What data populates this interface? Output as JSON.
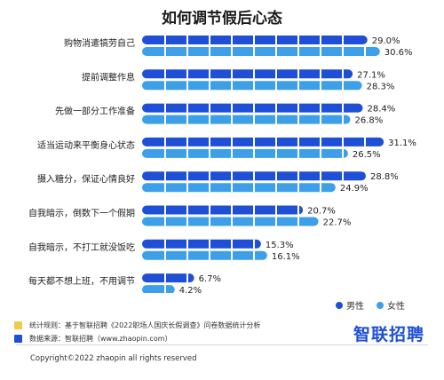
{
  "chart_data": {
    "type": "bar",
    "orientation": "horizontal",
    "title": "如何调节假后心态",
    "categories": [
      "购物消遣犒劳自己",
      "提前调整作息",
      "先做一部分工作准备",
      "适当运动来平衡身心状态",
      "摄入糖分，保证心情良好",
      "自我暗示，倒数下一个假期",
      "自我暗示，不打工就没饭吃",
      "每天都不想上班，不用调节"
    ],
    "series": [
      {
        "name": "男性",
        "color": "#1f4fd6",
        "values": [
          29.0,
          27.1,
          28.4,
          31.1,
          28.8,
          20.7,
          15.3,
          6.7
        ],
        "labels": [
          "29.0%",
          "27.1%",
          "28.4%",
          "31.1%",
          "28.8%",
          "20.7%",
          "15.3%",
          "6.7%"
        ]
      },
      {
        "name": "女性",
        "color": "#3d9fe8",
        "values": [
          30.6,
          28.3,
          26.8,
          26.5,
          24.9,
          22.7,
          16.1,
          4.2
        ],
        "labels": [
          "30.6%",
          "28.3%",
          "26.8%",
          "26.5%",
          "24.9%",
          "22.7%",
          "16.1%",
          "4.2%"
        ]
      }
    ],
    "xlim": [
      0,
      35
    ],
    "legend_position": "bottom-right",
    "grid": false
  },
  "footer": {
    "rule_text": "统计规则：基于智联招聘《2022职场人国庆长假调查》问卷数据统计分析",
    "rule_color": "#f2c94c",
    "source_text": "数据来源：智联招聘（www.zhaopin.com）",
    "source_color": "#1f4fd6",
    "brand": "智联招聘",
    "copyright": "Copyright©2022 zhaopin all rights reserved"
  }
}
